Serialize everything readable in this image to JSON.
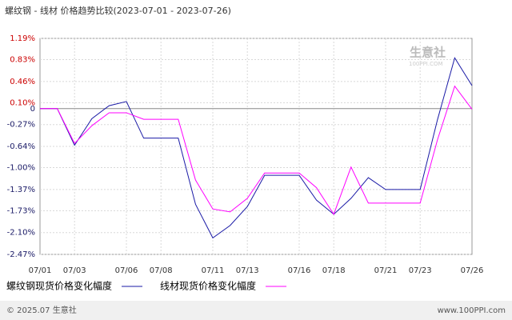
{
  "chart_data": {
    "type": "line",
    "title": "螺纹钢 - 线材 价格趋势比较(2023-07-01 - 2023-07-26)",
    "categories": [
      "07/01",
      null,
      "07/03",
      null,
      null,
      "07/06",
      null,
      "07/08",
      null,
      null,
      "07/11",
      null,
      "07/13",
      null,
      null,
      "07/16",
      null,
      "07/18",
      null,
      null,
      "07/21",
      null,
      "07/23",
      null,
      null,
      "07/26"
    ],
    "series": [
      {
        "name": "螺纹钢现货价格变化幅度",
        "color": "#1a1aa6",
        "values": [
          0,
          0,
          -0.62,
          -0.17,
          0.05,
          0.12,
          -0.5,
          -0.5,
          -0.5,
          -1.62,
          -2.19,
          -1.98,
          -1.66,
          -1.13,
          -1.13,
          -1.13,
          -1.55,
          -1.79,
          -1.52,
          -1.17,
          -1.37,
          -1.37,
          -1.37,
          -0.19,
          0.86,
          0.39
        ]
      },
      {
        "name": "线材现货价格变化幅度",
        "color": "#ff00ff",
        "values": [
          0,
          0,
          -0.59,
          -0.29,
          -0.07,
          -0.07,
          -0.18,
          -0.18,
          -0.18,
          -1.21,
          -1.7,
          -1.75,
          -1.52,
          -1.09,
          -1.09,
          -1.09,
          -1.34,
          -1.79,
          -0.99,
          -1.6,
          -1.6,
          -1.6,
          -1.6,
          -0.53,
          0.38,
          -0.01
        ]
      }
    ],
    "ylim": [
      -2.47,
      1.19
    ],
    "yticks": [
      {
        "value": 1.19,
        "label": "1.19%"
      },
      {
        "value": 0.83,
        "label": "0.83%"
      },
      {
        "value": 0.46,
        "label": "0.46%"
      },
      {
        "value": 0.1,
        "label": "0.10%"
      },
      0,
      {
        "value": -0.27,
        "label": "-0.27%"
      },
      {
        "value": -0.64,
        "label": "-0.64%"
      },
      {
        "value": -1.0,
        "label": "-1.00%"
      },
      {
        "value": -1.37,
        "label": "-1.37%"
      },
      {
        "value": -1.73,
        "label": "-1.73%"
      },
      {
        "value": -2.1,
        "label": "-2.10%"
      },
      {
        "value": -2.47,
        "label": "-2.47%"
      }
    ],
    "grid": true,
    "watermark": {
      "name": "生意社",
      "site": "100PPI.COM"
    },
    "footer": {
      "left": "© 2025.07 生意社",
      "right": "www.100PPI.com"
    }
  }
}
